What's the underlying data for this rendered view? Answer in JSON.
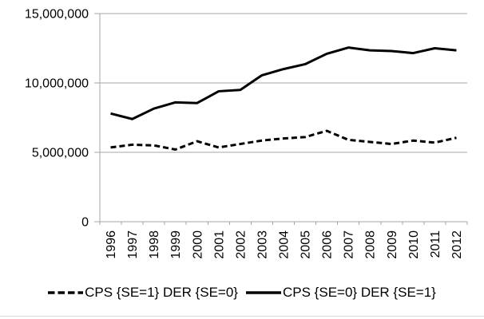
{
  "chart_data": {
    "type": "line",
    "title": "",
    "xlabel": "",
    "ylabel": "",
    "grid": true,
    "legend_position": "bottom",
    "axis_color": "#A6A6A6",
    "gridline_color": "#A6A6A6",
    "series_color": "#000000",
    "x": [
      "1996",
      "1997",
      "1998",
      "1999",
      "2000",
      "2001",
      "2002",
      "2003",
      "2004",
      "2005",
      "2006",
      "2007",
      "2008",
      "2009",
      "2010",
      "2011",
      "2012"
    ],
    "y_axis": {
      "min": 0,
      "max": 15000000,
      "step": 5000000,
      "tick_labels": [
        "0",
        "5,000,000",
        "10,000,000",
        "15,000,000"
      ]
    },
    "series": [
      {
        "name": "CPS {SE=1} DER {SE=0}",
        "style": "dashed",
        "color": "#000000",
        "values": [
          5350000,
          5550000,
          5500000,
          5200000,
          5800000,
          5350000,
          5600000,
          5850000,
          6000000,
          6100000,
          6550000,
          5900000,
          5750000,
          5600000,
          5850000,
          5700000,
          6050000
        ]
      },
      {
        "name": "CPS {SE=0} DER {SE=1}",
        "style": "solid",
        "color": "#000000",
        "values": [
          7800000,
          7400000,
          8150000,
          8600000,
          8550000,
          9400000,
          9500000,
          10550000,
          11000000,
          11350000,
          12100000,
          12550000,
          12350000,
          12300000,
          12150000,
          12500000,
          12350000
        ]
      }
    ]
  }
}
